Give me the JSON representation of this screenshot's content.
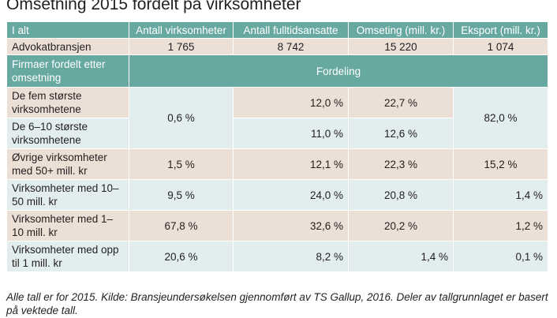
{
  "title": "Omsetning 2015 fordelt på virksomheter",
  "header": {
    "col0": "I alt",
    "col1": "Antall virksomheter",
    "col2": "Antall fulltidsansatte",
    "col3": "Omseting (mill. kr.)",
    "col4": "Eksport (mill. kr.)"
  },
  "advokat": {
    "label": "Advokatbransjen",
    "antall_virksomheter": "1 765",
    "antall_fulltidsansatte": "8 742",
    "omseting": "15 220",
    "eksport": "1 074"
  },
  "subheader": {
    "label": "Firmaer fordelt etter omsetning",
    "fordeling": "Fordeling"
  },
  "rows": [
    {
      "label": "De fem største virksomhetene",
      "ansatte": "12,0 %",
      "omseting": "22,7 %"
    },
    {
      "label": "De 6–10 største virksomhetene",
      "ansatte": "11,0 %",
      "omseting": "12,6 %"
    },
    {
      "label": "Øvrige virksomheter med 50+ mill. kr",
      "virksomheter": "1,5 %",
      "ansatte": "12,1 %",
      "omseting": "22,3 %",
      "eksport": "15,2 %"
    },
    {
      "label": "Virksomheter med 10–50 mill. kr",
      "virksomheter": "9,5 %",
      "ansatte": "24,0 %",
      "omseting": "20,8 %",
      "eksport": "1,4 %"
    },
    {
      "label": "Virksomheter med 1–10 mill. kr",
      "virksomheter": "67,8 %",
      "ansatte": "32,6 %",
      "omseting": "20,2 %",
      "eksport": "1,2 %"
    },
    {
      "label": "Virksomheter med opp til 1 mill. kr",
      "virksomheter": "20,6 %",
      "ansatte": "8,2 %",
      "omseting": "1,4 %",
      "eksport": "0,1 %"
    }
  ],
  "merged": {
    "top10_virksomheter": "0,6 %",
    "top10_eksport": "82,0 %"
  },
  "footnote": "Alle tall er for 2015. Kilde: Bransjeundersøkelsen gjennomført av TS Gallup, 2016. Deler av tallgrunnlaget er basert på vektede tall.",
  "colors": {
    "header": "#67a8a1",
    "row_beige": "#ecdfd5",
    "row_bluegrey": "#e2eded"
  }
}
